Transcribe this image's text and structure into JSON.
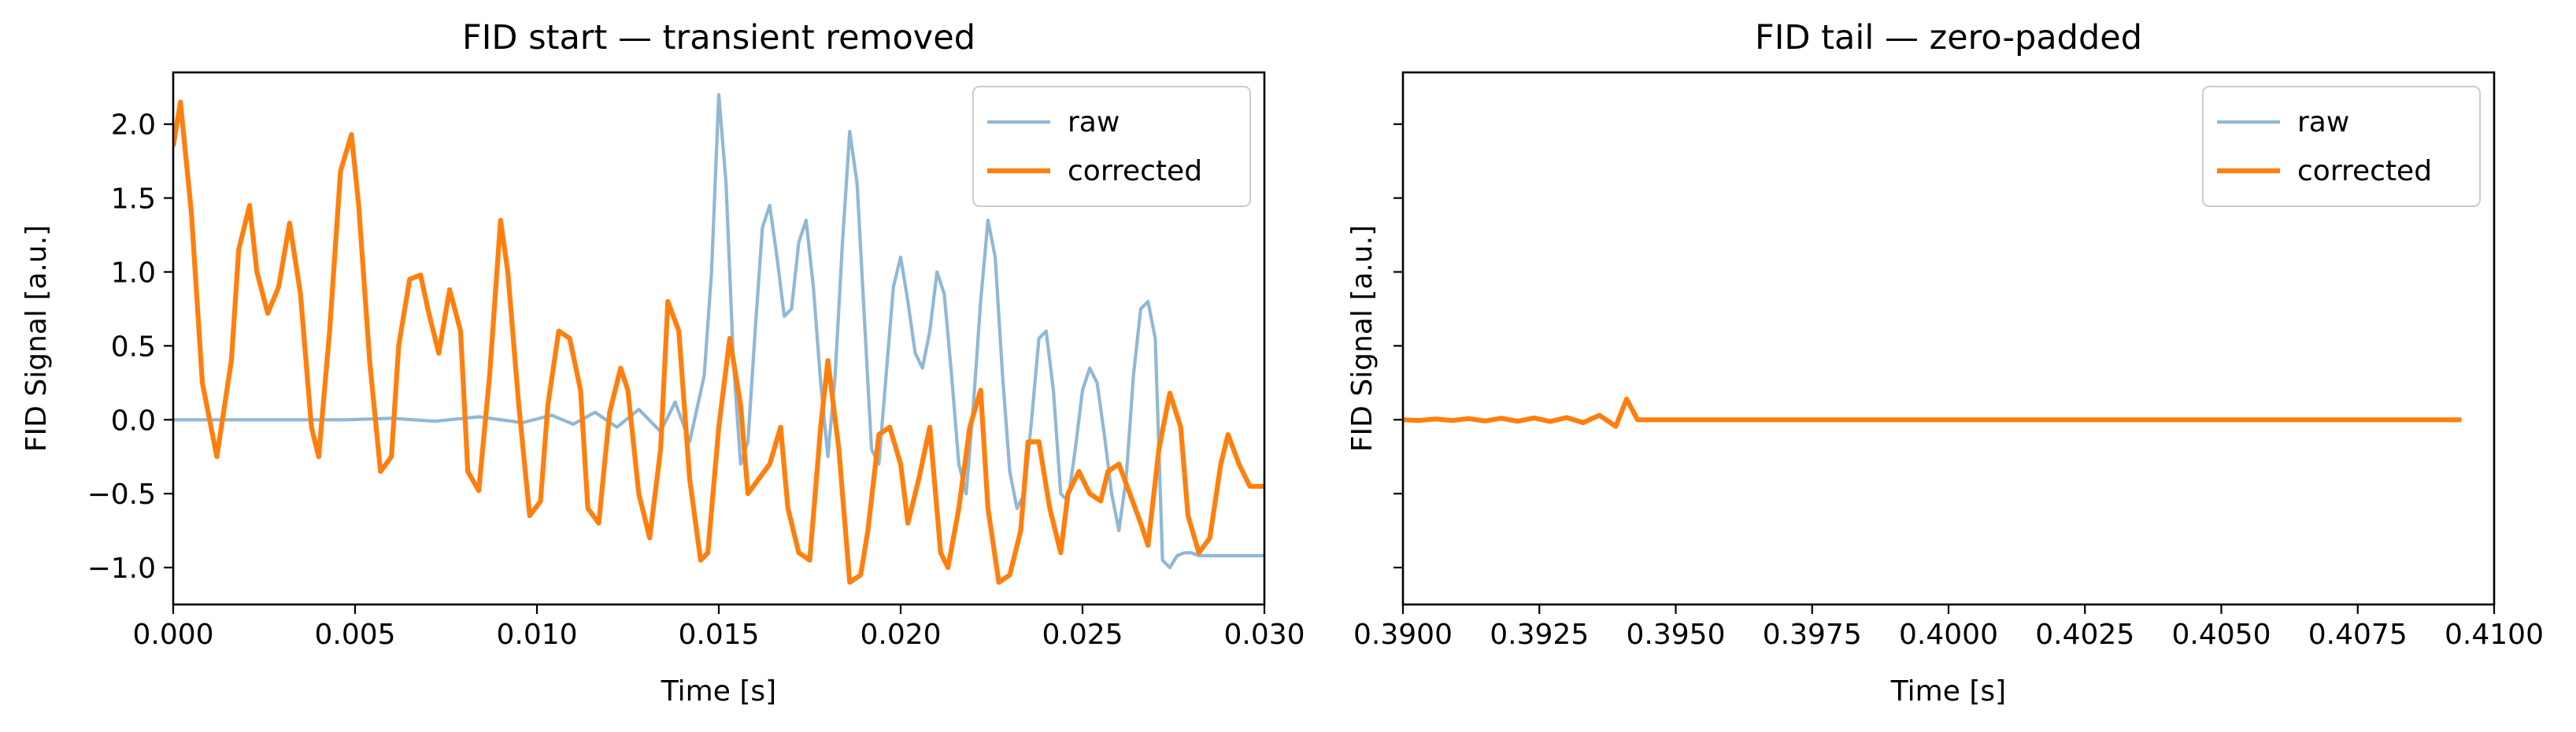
{
  "chart_data": [
    {
      "type": "line",
      "title": "FID start — transient removed",
      "xlabel": "Time [s]",
      "ylabel": "FID Signal [a.u.]",
      "xlim": [
        0.0,
        0.03
      ],
      "ylim": [
        -1.25,
        2.35
      ],
      "xticks": [
        "0.000",
        "0.005",
        "0.010",
        "0.015",
        "0.020",
        "0.025",
        "0.030"
      ],
      "yticks": [
        "−1.0",
        "−0.5",
        "0.0",
        "0.5",
        "1.0",
        "1.5",
        "2.0"
      ],
      "legend_position": "top-right",
      "grid": false,
      "series": [
        {
          "name": "raw",
          "color": "#8fb8d6",
          "x": [
            0.0,
            0.0012,
            0.0024,
            0.0036,
            0.0048,
            0.006,
            0.0072,
            0.0084,
            0.0096,
            0.0104,
            0.011,
            0.0116,
            0.0122,
            0.0128,
            0.0134,
            0.0138,
            0.0142,
            0.0146,
            0.0148,
            0.015,
            0.0152,
            0.0154,
            0.0156,
            0.0158,
            0.016,
            0.0162,
            0.0164,
            0.0166,
            0.0168,
            0.017,
            0.0172,
            0.0174,
            0.0176,
            0.0178,
            0.018,
            0.0182,
            0.0184,
            0.0186,
            0.0188,
            0.019,
            0.0192,
            0.0194,
            0.0196,
            0.0198,
            0.02,
            0.0202,
            0.0204,
            0.0206,
            0.0208,
            0.021,
            0.0212,
            0.0214,
            0.0216,
            0.0218,
            0.022,
            0.0222,
            0.0224,
            0.0226,
            0.0228,
            0.023,
            0.0232,
            0.0234,
            0.0236,
            0.0238,
            0.024,
            0.0242,
            0.0244,
            0.0246,
            0.0248,
            0.025,
            0.0252,
            0.0254,
            0.0256,
            0.0258,
            0.026,
            0.0262,
            0.0264,
            0.0266,
            0.0268,
            0.027,
            0.0272,
            0.0274,
            0.0276,
            0.0278,
            0.028,
            0.0282,
            0.0284,
            0.0286,
            0.0288,
            0.029,
            0.0292,
            0.0294,
            0.0296,
            0.0298,
            0.03
          ],
          "values": [
            0.0,
            0.0,
            0.0,
            0.0,
            0.0,
            0.01,
            -0.01,
            0.02,
            -0.02,
            0.03,
            -0.03,
            0.05,
            -0.05,
            0.07,
            -0.08,
            0.12,
            -0.15,
            0.3,
            1.0,
            2.2,
            1.6,
            0.4,
            -0.3,
            -0.15,
            0.6,
            1.3,
            1.45,
            1.1,
            0.7,
            0.75,
            1.2,
            1.35,
            0.9,
            0.25,
            -0.25,
            0.3,
            1.2,
            1.95,
            1.6,
            0.7,
            -0.2,
            -0.3,
            0.3,
            0.9,
            1.1,
            0.8,
            0.45,
            0.35,
            0.6,
            1.0,
            0.85,
            0.3,
            -0.3,
            -0.5,
            0.1,
            0.8,
            1.35,
            1.1,
            0.3,
            -0.35,
            -0.6,
            -0.5,
            0.0,
            0.55,
            0.6,
            0.2,
            -0.5,
            -0.55,
            -0.2,
            0.2,
            0.35,
            0.25,
            -0.1,
            -0.5,
            -0.75,
            -0.4,
            0.3,
            0.75,
            0.8,
            0.55,
            -0.95,
            -1.0,
            -0.92,
            -0.9,
            -0.9,
            -0.92,
            -0.92,
            -0.92,
            -0.92,
            -0.92,
            -0.92,
            -0.92,
            -0.92,
            -0.92,
            -0.92
          ]
        },
        {
          "name": "corrected",
          "color": "#ff7f0e",
          "x": [
            0.0,
            0.0002,
            0.0005,
            0.0008,
            0.0012,
            0.0016,
            0.0018,
            0.0021,
            0.0023,
            0.0026,
            0.0029,
            0.0032,
            0.0035,
            0.0038,
            0.004,
            0.0043,
            0.0046,
            0.0049,
            0.0051,
            0.0054,
            0.0057,
            0.006,
            0.0062,
            0.0065,
            0.0068,
            0.007,
            0.0073,
            0.0076,
            0.0079,
            0.0081,
            0.0084,
            0.0087,
            0.009,
            0.0092,
            0.0095,
            0.0098,
            0.0101,
            0.0103,
            0.0106,
            0.0109,
            0.0112,
            0.0114,
            0.0117,
            0.012,
            0.0123,
            0.0125,
            0.0128,
            0.0131,
            0.0134,
            0.0136,
            0.0139,
            0.0142,
            0.0145,
            0.0147,
            0.015,
            0.0153,
            0.0156,
            0.0158,
            0.0161,
            0.0164,
            0.0167,
            0.0169,
            0.0172,
            0.0175,
            0.0178,
            0.018,
            0.0183,
            0.0186,
            0.0189,
            0.0191,
            0.0194,
            0.0197,
            0.02,
            0.0202,
            0.0205,
            0.0208,
            0.0211,
            0.0213,
            0.0216,
            0.0219,
            0.0222,
            0.0224,
            0.0227,
            0.023,
            0.0233,
            0.0235,
            0.0238,
            0.0241,
            0.0244,
            0.0246,
            0.0249,
            0.0252,
            0.0255,
            0.0257,
            0.026,
            0.0263,
            0.0266,
            0.0268,
            0.0271,
            0.0274,
            0.0277,
            0.0279,
            0.0282,
            0.0285,
            0.0288,
            0.029,
            0.0293,
            0.0296,
            0.0299,
            0.03
          ],
          "values": [
            1.85,
            2.15,
            1.4,
            0.25,
            -0.25,
            0.4,
            1.15,
            1.45,
            1.0,
            0.72,
            0.9,
            1.33,
            0.85,
            -0.05,
            -0.25,
            0.6,
            1.68,
            1.93,
            1.45,
            0.4,
            -0.35,
            -0.25,
            0.5,
            0.95,
            0.98,
            0.75,
            0.45,
            0.88,
            0.6,
            -0.35,
            -0.48,
            0.3,
            1.35,
            1.0,
            0.1,
            -0.65,
            -0.55,
            0.1,
            0.6,
            0.55,
            0.2,
            -0.6,
            -0.7,
            0.05,
            0.35,
            0.2,
            -0.5,
            -0.8,
            -0.2,
            0.8,
            0.6,
            -0.4,
            -0.95,
            -0.9,
            -0.05,
            0.55,
            0.1,
            -0.5,
            -0.4,
            -0.3,
            -0.05,
            -0.6,
            -0.9,
            -0.95,
            -0.05,
            0.4,
            -0.2,
            -1.1,
            -1.05,
            -0.75,
            -0.1,
            -0.05,
            -0.3,
            -0.7,
            -0.4,
            -0.05,
            -0.9,
            -1.0,
            -0.6,
            -0.05,
            0.2,
            -0.6,
            -1.1,
            -1.05,
            -0.75,
            -0.15,
            -0.15,
            -0.6,
            -0.9,
            -0.5,
            -0.35,
            -0.5,
            -0.55,
            -0.35,
            -0.3,
            -0.5,
            -0.7,
            -0.85,
            -0.2,
            0.18,
            -0.05,
            -0.65,
            -0.9,
            -0.8,
            -0.3,
            -0.1,
            -0.3,
            -0.45,
            -0.45,
            -0.45
          ]
        }
      ]
    },
    {
      "type": "line",
      "title": "FID tail — zero-padded",
      "xlabel": "Time [s]",
      "ylabel": "FID Signal [a.u.]",
      "xlim": [
        0.39,
        0.41
      ],
      "ylim": [
        -1.25,
        2.35
      ],
      "xticks": [
        "0.3900",
        "0.3925",
        "0.3950",
        "0.3975",
        "0.4000",
        "0.4025",
        "0.4050",
        "0.4075",
        "0.4100"
      ],
      "y_tick_values": [
        -1.0,
        -0.5,
        0.0,
        0.5,
        1.0,
        1.5,
        2.0
      ],
      "legend_position": "top-right",
      "grid": false,
      "series": [
        {
          "name": "raw",
          "color": "#8fb8d6",
          "x": [
            0.39,
            0.3903,
            0.3906,
            0.3909,
            0.3912,
            0.3915,
            0.3918,
            0.3921,
            0.3924,
            0.3927,
            0.393,
            0.3933,
            0.3936,
            0.3939,
            0.3941,
            0.3943,
            0.3946,
            0.395,
            0.4094
          ],
          "values": [
            0.0,
            -0.005,
            0.005,
            -0.005,
            0.008,
            -0.008,
            0.01,
            -0.01,
            0.012,
            -0.012,
            0.015,
            -0.02,
            0.03,
            -0.045,
            0.14,
            0.0,
            0.0,
            0.0,
            0.0
          ]
        },
        {
          "name": "corrected",
          "color": "#ff7f0e",
          "x": [
            0.39,
            0.3903,
            0.3906,
            0.3909,
            0.3912,
            0.3915,
            0.3918,
            0.3921,
            0.3924,
            0.3927,
            0.393,
            0.3933,
            0.3936,
            0.3939,
            0.3941,
            0.3943,
            0.3946,
            0.395,
            0.4094
          ],
          "values": [
            0.0,
            -0.005,
            0.005,
            -0.005,
            0.008,
            -0.008,
            0.01,
            -0.01,
            0.012,
            -0.012,
            0.015,
            -0.02,
            0.03,
            -0.045,
            0.14,
            0.0,
            0.0,
            0.0,
            0.0
          ]
        }
      ]
    }
  ]
}
